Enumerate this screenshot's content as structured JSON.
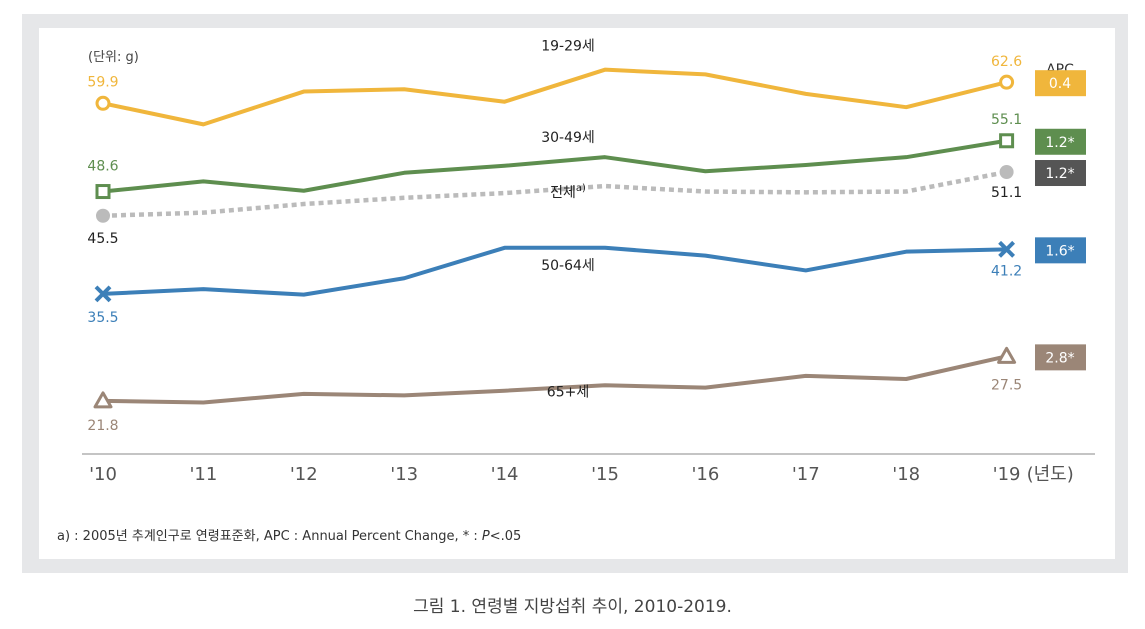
{
  "chart_data": {
    "type": "line",
    "unit_label": "(단위: g)",
    "categories": [
      "'10",
      "'11",
      "'12",
      "'13",
      "'14",
      "'15",
      "'16",
      "'17",
      "'18",
      "'19"
    ],
    "x_unit": "(년도)",
    "ylim": [
      15,
      68
    ],
    "apc_title": "APC",
    "series": [
      {
        "name": "19-29세",
        "color": "#f0b63c",
        "dash": false,
        "marker": "circle-open",
        "values": [
          59.9,
          57.2,
          61.4,
          61.7,
          60.1,
          64.2,
          63.6,
          61.1,
          59.4,
          62.6
        ],
        "start_label": "59.9",
        "end_label": "62.6",
        "apc": "0.4"
      },
      {
        "name": "30-49세",
        "color": "#5e8e4f",
        "dash": false,
        "marker": "square-open",
        "values": [
          48.6,
          49.9,
          48.7,
          51.0,
          51.9,
          53.0,
          51.2,
          52.0,
          53.0,
          55.1
        ],
        "start_label": "48.6",
        "end_label": "55.1",
        "apc": "1.2*"
      },
      {
        "name": "전체",
        "name_sup": "a)",
        "color": "#bbbbbb",
        "apc_color": "#555555",
        "dash": true,
        "marker": "circle-filled",
        "values": [
          45.5,
          45.9,
          47.0,
          47.8,
          48.4,
          49.3,
          48.6,
          48.5,
          48.6,
          51.1
        ],
        "start_label": "45.5",
        "end_label": "51.1",
        "apc": "1.2*"
      },
      {
        "name": "50-64세",
        "color": "#3c7fb8",
        "dash": false,
        "marker": "x",
        "values": [
          35.5,
          36.1,
          35.4,
          37.5,
          41.4,
          41.4,
          40.4,
          38.5,
          40.9,
          41.2
        ],
        "start_label": "35.5",
        "end_label": "41.2",
        "apc": "1.6*"
      },
      {
        "name": "65+세",
        "color": "#9b8677",
        "dash": false,
        "marker": "triangle-open",
        "values": [
          21.8,
          21.6,
          22.7,
          22.5,
          23.1,
          23.8,
          23.5,
          25.0,
          24.6,
          27.5
        ],
        "start_label": "21.8",
        "end_label": "27.5",
        "apc": "2.8*"
      }
    ]
  },
  "footnote": {
    "text": "a) : 2005년 추계인구로 연령표준화,  APC : Annual Percent Change, * : ",
    "p": "P",
    "tail": "<.05"
  },
  "caption": "그림 1. 연령별 지방섭취 추이, 2010-2019."
}
